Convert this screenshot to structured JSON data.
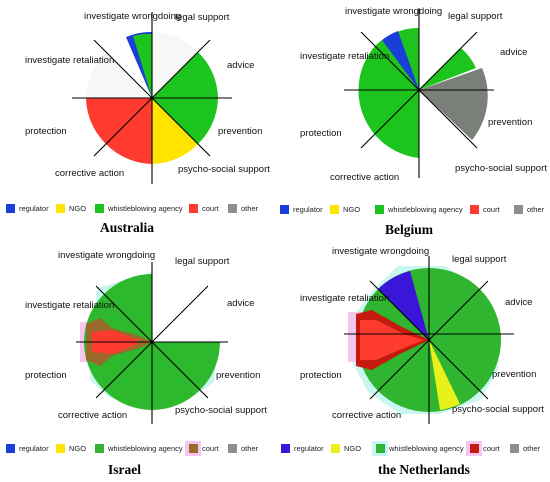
{
  "colors": {
    "regulator": "#1a3fd9",
    "ngo": "#ffe400",
    "whistleblowing_agency": "#1ec41e",
    "court": "#ff3b30",
    "other": "#8e8e8e",
    "nl_regulator": "#3a17d8",
    "nl_ngo": "#e8f21a",
    "nl_court": "#c41a10",
    "is_court": "#9a6a2a"
  },
  "legend_labels": {
    "regulator": "regulator",
    "ngo": "NGO",
    "whistleblowing_agency": "whistleblowing agency",
    "court": "court",
    "other": "other"
  },
  "axis_labels": {
    "investigate_wrongdoing": "investigate wrongdoing",
    "legal_support": "legal support",
    "advice": "advice",
    "investigate_retaliation": "investigate retaliation",
    "prevention": "prevention",
    "protection": "protection",
    "corrective_action": "corrective action",
    "psycho_social_support": "psycho-social support"
  },
  "chart_data": [
    {
      "type": "diagram",
      "title": "Australia",
      "sectors": [
        {
          "axis": "investigate wrongdoing",
          "institutions": [
            "regulator",
            "whistleblowing agency"
          ]
        },
        {
          "axis": "legal support",
          "institutions": []
        },
        {
          "axis": "advice",
          "institutions": [
            "whistleblowing agency"
          ]
        },
        {
          "axis": "prevention",
          "institutions": [
            "whistleblowing agency"
          ]
        },
        {
          "axis": "psycho-social support",
          "institutions": [
            "NGO"
          ]
        },
        {
          "axis": "corrective action",
          "institutions": [
            "court"
          ]
        },
        {
          "axis": "protection",
          "institutions": [
            "court"
          ]
        },
        {
          "axis": "investigate retaliation",
          "institutions": []
        }
      ]
    },
    {
      "type": "diagram",
      "title": "Belgium",
      "sectors": [
        {
          "axis": "investigate wrongdoing",
          "institutions": [
            "regulator",
            "whistleblowing agency"
          ]
        },
        {
          "axis": "legal support",
          "institutions": []
        },
        {
          "axis": "advice",
          "institutions": [
            "whistleblowing agency"
          ]
        },
        {
          "axis": "prevention",
          "institutions": [
            "other"
          ]
        },
        {
          "axis": "psycho-social support",
          "institutions": []
        },
        {
          "axis": "corrective action",
          "institutions": [
            "whistleblowing agency"
          ]
        },
        {
          "axis": "protection",
          "institutions": [
            "whistleblowing agency"
          ]
        },
        {
          "axis": "investigate retaliation",
          "institutions": [
            "whistleblowing agency"
          ]
        }
      ]
    },
    {
      "type": "diagram",
      "title": "Israel",
      "sectors": [
        {
          "axis": "investigate wrongdoing",
          "institutions": [
            "whistleblowing agency"
          ]
        },
        {
          "axis": "legal support",
          "institutions": []
        },
        {
          "axis": "advice",
          "institutions": []
        },
        {
          "axis": "prevention",
          "institutions": [
            "whistleblowing agency"
          ]
        },
        {
          "axis": "psycho-social support",
          "institutions": [
            "whistleblowing agency"
          ]
        },
        {
          "axis": "corrective action",
          "institutions": [
            "whistleblowing agency"
          ]
        },
        {
          "axis": "protection",
          "institutions": [
            "whistleblowing agency",
            "court"
          ]
        },
        {
          "axis": "investigate retaliation",
          "institutions": [
            "whistleblowing agency",
            "court"
          ]
        }
      ]
    },
    {
      "type": "diagram",
      "title": "the Netherlands",
      "sectors": [
        {
          "axis": "investigate wrongdoing",
          "institutions": [
            "regulator",
            "whistleblowing agency"
          ]
        },
        {
          "axis": "legal support",
          "institutions": [
            "whistleblowing agency"
          ]
        },
        {
          "axis": "advice",
          "institutions": [
            "whistleblowing agency"
          ]
        },
        {
          "axis": "prevention",
          "institutions": [
            "whistleblowing agency"
          ]
        },
        {
          "axis": "psycho-social support",
          "institutions": [
            "NGO",
            "whistleblowing agency"
          ]
        },
        {
          "axis": "corrective action",
          "institutions": [
            "whistleblowing agency"
          ]
        },
        {
          "axis": "protection",
          "institutions": [
            "whistleblowing agency",
            "court"
          ]
        },
        {
          "axis": "investigate retaliation",
          "institutions": [
            "court",
            "whistleblowing agency"
          ]
        }
      ]
    }
  ]
}
